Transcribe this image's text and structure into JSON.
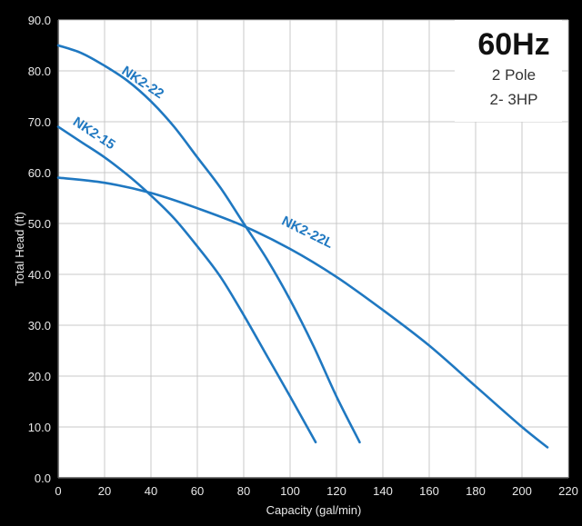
{
  "chart_data": {
    "type": "line",
    "title": "60Hz",
    "subtitle_lines": [
      "2 Pole",
      "2- 3HP"
    ],
    "xlabel": "Capacity (gal/min)",
    "ylabel": "Total Head (ft)",
    "xlim": [
      0,
      220
    ],
    "ylim": [
      0,
      90
    ],
    "xticks": [
      0,
      20,
      40,
      60,
      80,
      100,
      120,
      140,
      160,
      180,
      200,
      220
    ],
    "yticks": [
      0,
      10,
      20,
      30,
      40,
      50,
      60,
      70,
      80,
      90
    ],
    "grid": true,
    "legend": "inline curve labels",
    "line_color": "#1f78c1",
    "series": [
      {
        "name": "NK2-22",
        "x": [
          0,
          10,
          20,
          30,
          40,
          50,
          60,
          70,
          80,
          90,
          100,
          110,
          120,
          130
        ],
        "y": [
          85,
          83.5,
          81,
          78,
          74,
          69,
          63,
          57,
          50,
          43,
          35,
          26,
          16,
          7
        ]
      },
      {
        "name": "NK2-15",
        "x": [
          0,
          10,
          20,
          30,
          40,
          50,
          60,
          70,
          80,
          90,
          100,
          111
        ],
        "y": [
          69,
          66,
          63,
          59.5,
          55.5,
          51,
          45.5,
          39.5,
          32,
          24,
          16,
          7
        ]
      },
      {
        "name": "NK2-22L",
        "x": [
          0,
          20,
          40,
          60,
          80,
          100,
          120,
          140,
          160,
          180,
          200,
          211
        ],
        "y": [
          59,
          58,
          56,
          53,
          49.5,
          45,
          39.5,
          33,
          26,
          18,
          10,
          6
        ]
      }
    ],
    "labels": [
      {
        "series": "NK2-22",
        "text": "NK2-22"
      },
      {
        "series": "NK2-15",
        "text": "NK2-15"
      },
      {
        "series": "NK2-22L",
        "text": "NK2-22L"
      }
    ]
  }
}
